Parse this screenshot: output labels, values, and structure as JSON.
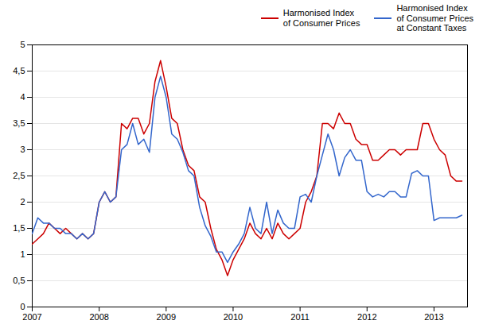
{
  "chart_data": {
    "type": "line",
    "x": [
      2007.0,
      2007.0833333333333,
      2007.1666666666667,
      2007.25,
      2007.3333333333333,
      2007.4166666666667,
      2007.5,
      2007.5833333333333,
      2007.6666666666667,
      2007.75,
      2007.8333333333333,
      2007.9166666666667,
      2008.0,
      2008.0833333333333,
      2008.1666666666667,
      2008.25,
      2008.3333333333333,
      2008.4166666666667,
      2008.5,
      2008.5833333333333,
      2008.6666666666667,
      2008.75,
      2008.8333333333333,
      2008.9166666666667,
      2009.0,
      2009.0833333333333,
      2009.1666666666667,
      2009.25,
      2009.3333333333333,
      2009.4166666666667,
      2009.5,
      2009.5833333333333,
      2009.6666666666667,
      2009.75,
      2009.8333333333333,
      2009.9166666666667,
      2010.0,
      2010.0833333333333,
      2010.1666666666667,
      2010.25,
      2010.3333333333333,
      2010.4166666666667,
      2010.5,
      2010.5833333333333,
      2010.6666666666667,
      2010.75,
      2010.8333333333333,
      2010.9166666666667,
      2011.0,
      2011.0833333333333,
      2011.1666666666667,
      2011.25,
      2011.3333333333333,
      2011.4166666666667,
      2011.5,
      2011.5833333333333,
      2011.6666666666667,
      2011.75,
      2011.8333333333333,
      2011.9166666666667,
      2012.0,
      2012.0833333333333,
      2012.1666666666667,
      2012.25,
      2012.3333333333333,
      2012.4166666666667,
      2012.5,
      2012.5833333333333,
      2012.6666666666667,
      2012.75,
      2012.8333333333333,
      2012.9166666666667,
      2013.0,
      2013.0833333333333,
      2013.1666666666667,
      2013.25,
      2013.3333333333333,
      2013.4166666666667
    ],
    "series": [
      {
        "name": "Harmonised Index\nof Consumer Prices",
        "color": "#cc0000",
        "values": [
          1.2,
          1.3,
          1.4,
          1.6,
          1.5,
          1.4,
          1.5,
          1.4,
          1.3,
          1.4,
          1.3,
          1.4,
          2.0,
          2.2,
          2.0,
          2.1,
          3.5,
          3.4,
          3.6,
          3.6,
          3.3,
          3.5,
          4.3,
          4.7,
          4.2,
          3.6,
          3.5,
          3.0,
          2.7,
          2.6,
          2.1,
          2.0,
          1.5,
          1.1,
          0.9,
          0.6,
          0.9,
          1.1,
          1.3,
          1.6,
          1.4,
          1.3,
          1.5,
          1.3,
          1.6,
          1.4,
          1.3,
          1.4,
          1.5,
          2.0,
          2.2,
          2.5,
          3.5,
          3.5,
          3.4,
          3.7,
          3.5,
          3.5,
          3.2,
          3.1,
          3.1,
          2.8,
          2.8,
          2.9,
          3.0,
          3.0,
          2.9,
          3.0,
          3.0,
          3.0,
          3.5,
          3.5,
          3.2,
          3.0,
          2.9,
          2.5,
          2.4,
          2.4
        ]
      },
      {
        "name": "Harmonised Index\nof Consumer Prices\nat Constant Taxes",
        "color": "#3366cc",
        "values": [
          1.4,
          1.7,
          1.6,
          1.6,
          1.5,
          1.5,
          1.4,
          1.4,
          1.3,
          1.4,
          1.3,
          1.4,
          2.0,
          2.2,
          2.0,
          2.1,
          3.0,
          3.1,
          3.5,
          3.1,
          3.2,
          2.95,
          4.0,
          4.4,
          4.0,
          3.3,
          3.2,
          2.95,
          2.6,
          2.5,
          1.9,
          1.55,
          1.35,
          1.05,
          1.05,
          0.85,
          1.05,
          1.2,
          1.4,
          1.9,
          1.5,
          1.4,
          2.0,
          1.4,
          1.85,
          1.6,
          1.5,
          1.5,
          2.1,
          2.15,
          2.0,
          2.5,
          2.9,
          3.3,
          3.0,
          2.5,
          2.85,
          3.0,
          2.8,
          2.8,
          2.2,
          2.1,
          2.15,
          2.1,
          2.2,
          2.2,
          2.1,
          2.1,
          2.55,
          2.6,
          2.5,
          2.5,
          1.65,
          1.7,
          1.7,
          1.7,
          1.7,
          1.75
        ]
      }
    ],
    "xlim": [
      2007.0,
      2013.5
    ],
    "xticks": [
      2007,
      2008,
      2009,
      2010,
      2011,
      2012,
      2013
    ],
    "ylim": [
      0,
      5
    ],
    "yticks": [
      0,
      {
        "value": 0.5,
        "label": "0,5"
      },
      1,
      {
        "value": 1.5,
        "label": "1,5"
      },
      2,
      {
        "value": 2.5,
        "label": "2,5"
      },
      3,
      {
        "value": 3.5,
        "label": "3,5"
      },
      4,
      {
        "value": 4.5,
        "label": "4,5"
      },
      5
    ],
    "grid": true,
    "legend": "upper right"
  }
}
